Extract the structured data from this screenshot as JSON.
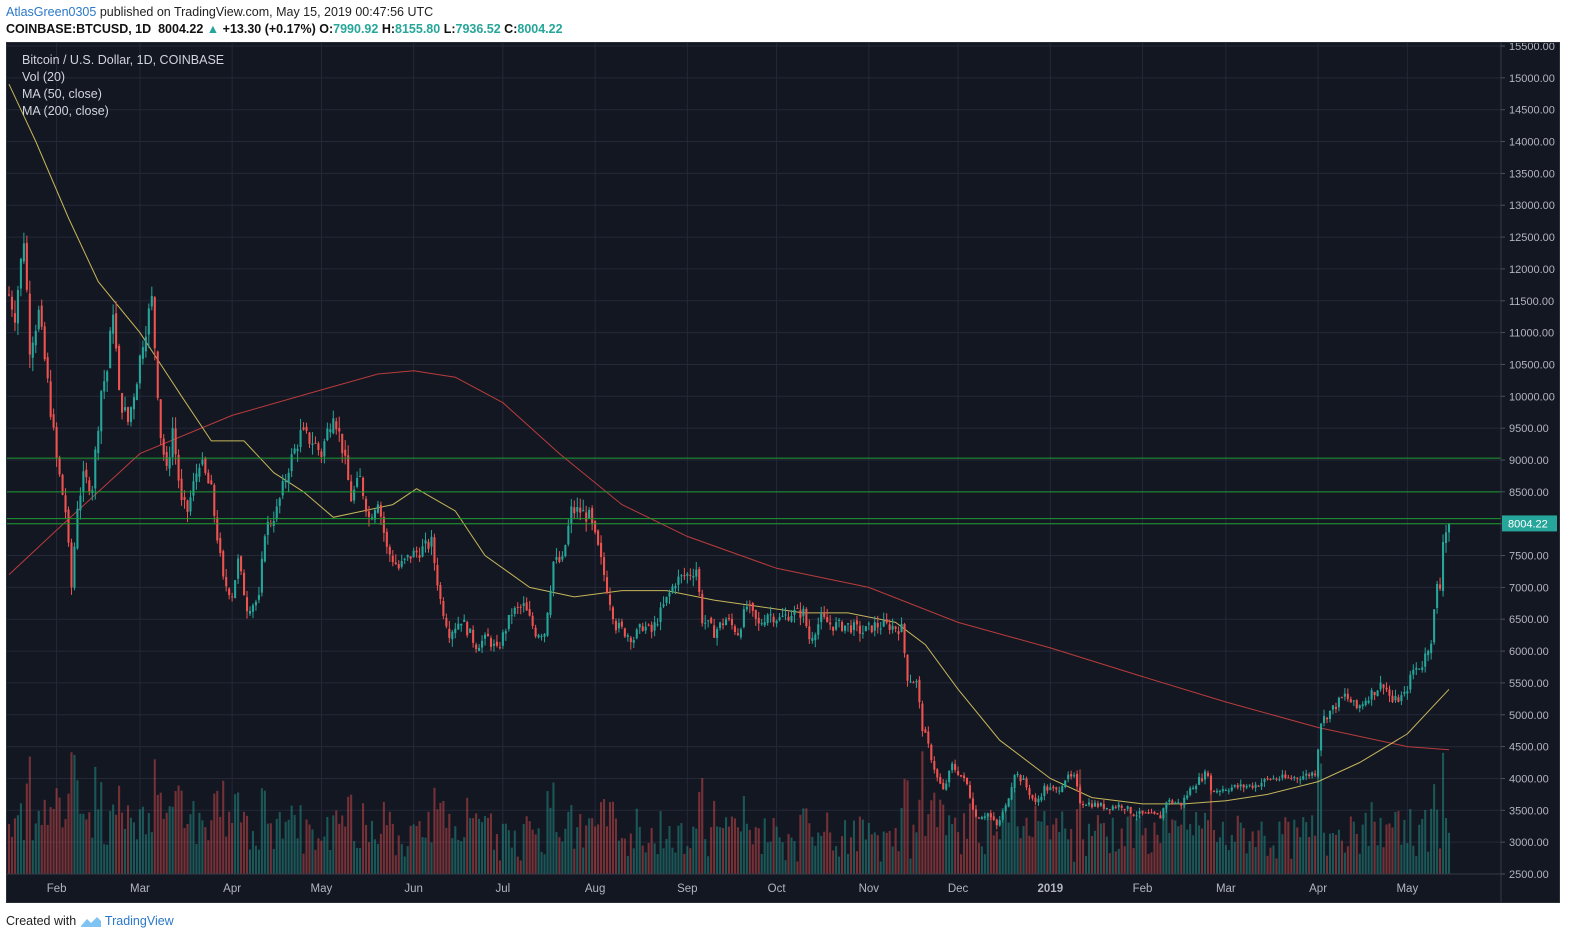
{
  "header": {
    "user": "AtlasGreen0305",
    "published_text": "published on TradingView.com, May 15, 2019 00:47:56 UTC",
    "symbol": "COINBASE:BTCUSD, 1D",
    "last": "8004.22",
    "change_arrow": "▲",
    "change": "+13.30 (+0.17%)",
    "o_label": "O:",
    "o_value": "7990.92",
    "h_label": "H:",
    "h_value": "8155.80",
    "l_label": "L:",
    "l_value": "7936.52",
    "c_label": "C:",
    "c_value": "8004.22"
  },
  "legend": {
    "title": "Bitcoin / U.S. Dollar, 1D, COINBASE",
    "vol": "Vol (20)",
    "ma50": "MA (50, close)",
    "ma200": "MA (200, close)"
  },
  "footer": {
    "created_with": "Created with",
    "brand": "TradingView",
    "logo_icon": "tradingview-logo-icon"
  },
  "colors": {
    "background": "#131722",
    "grid": "#242838",
    "up": "#26a69a",
    "down": "#ef5350",
    "ma50": "#c6b65a",
    "ma200": "#b93c3c",
    "hline": "#1e9b32",
    "axis_text": "#b2b5be"
  },
  "chart_data": {
    "type": "candlestick",
    "title": "Bitcoin / U.S. Dollar, 1D, COINBASE",
    "x_range": [
      "2018-01-16",
      "2019-05-15"
    ],
    "ylim": [
      2500,
      15500
    ],
    "y_ticks": [
      2500,
      3000,
      3500,
      4000,
      4500,
      5000,
      5500,
      6000,
      6500,
      7000,
      7500,
      8000,
      8500,
      9000,
      9500,
      10000,
      10500,
      11000,
      11500,
      12000,
      12500,
      13000,
      13500,
      14000,
      14500,
      15000,
      15500
    ],
    "y_tick_labels": [
      "2500.00",
      "3000.00",
      "3500.00",
      "4000.00",
      "4500.00",
      "5000.00",
      "5500.00",
      "6000.00",
      "6500.00",
      "7000.00",
      "7500.00",
      "8000.00",
      "8500.00",
      "9000.00",
      "9500.00",
      "10000.00",
      "10500.00",
      "11000.00",
      "11500.00",
      "12000.00",
      "12500.00",
      "13000.00",
      "13500.00",
      "14000.00",
      "14500.00",
      "15000.00",
      "15500.00"
    ],
    "x_ticks": [
      {
        "date": "2018-02-01",
        "label": "Feb"
      },
      {
        "date": "2018-03-01",
        "label": "Mar"
      },
      {
        "date": "2018-04-01",
        "label": "Apr"
      },
      {
        "date": "2018-05-01",
        "label": "May"
      },
      {
        "date": "2018-06-01",
        "label": "Jun"
      },
      {
        "date": "2018-07-01",
        "label": "Jul"
      },
      {
        "date": "2018-08-01",
        "label": "Aug"
      },
      {
        "date": "2018-09-01",
        "label": "Sep"
      },
      {
        "date": "2018-10-01",
        "label": "Oct"
      },
      {
        "date": "2018-11-01",
        "label": "Nov"
      },
      {
        "date": "2018-12-01",
        "label": "Dec"
      },
      {
        "date": "2019-01-01",
        "label": "2019"
      },
      {
        "date": "2019-02-01",
        "label": "Feb"
      },
      {
        "date": "2019-03-01",
        "label": "Mar"
      },
      {
        "date": "2019-04-01",
        "label": "Apr"
      },
      {
        "date": "2019-05-01",
        "label": "May"
      }
    ],
    "horizontal_levels": [
      8000,
      8080,
      8500,
      9030
    ],
    "last_price": 8004.22,
    "last_price_label": "8004.22",
    "close_path": [
      [
        "2018-01-16",
        11600
      ],
      [
        "2018-01-18",
        11300
      ],
      [
        "2018-01-21",
        12500
      ],
      [
        "2018-01-23",
        10800
      ],
      [
        "2018-01-26",
        11300
      ],
      [
        "2018-01-29",
        10200
      ],
      [
        "2018-02-01",
        9000
      ],
      [
        "2018-02-04",
        8200
      ],
      [
        "2018-02-06",
        7000
      ],
      [
        "2018-02-08",
        8300
      ],
      [
        "2018-02-10",
        8700
      ],
      [
        "2018-02-13",
        8600
      ],
      [
        "2018-02-16",
        10100
      ],
      [
        "2018-02-18",
        10400
      ],
      [
        "2018-02-20",
        11400
      ],
      [
        "2018-02-22",
        10000
      ],
      [
        "2018-02-25",
        9600
      ],
      [
        "2018-02-28",
        10300
      ],
      [
        "2018-03-02",
        10900
      ],
      [
        "2018-03-05",
        11500
      ],
      [
        "2018-03-08",
        9400
      ],
      [
        "2018-03-10",
        8800
      ],
      [
        "2018-03-12",
        9500
      ],
      [
        "2018-03-15",
        8300
      ],
      [
        "2018-03-17",
        8200
      ],
      [
        "2018-03-19",
        8600
      ],
      [
        "2018-03-21",
        9000
      ],
      [
        "2018-03-25",
        8500
      ],
      [
        "2018-03-29",
        7100
      ],
      [
        "2018-04-01",
        6900
      ],
      [
        "2018-04-03",
        7400
      ],
      [
        "2018-04-06",
        6700
      ],
      [
        "2018-04-10",
        6800
      ],
      [
        "2018-04-12",
        7900
      ],
      [
        "2018-04-16",
        8200
      ],
      [
        "2018-04-20",
        8900
      ],
      [
        "2018-04-24",
        9400
      ],
      [
        "2018-04-28",
        9300
      ],
      [
        "2018-05-01",
        9100
      ],
      [
        "2018-05-05",
        9800
      ],
      [
        "2018-05-08",
        9200
      ],
      [
        "2018-05-11",
        8400
      ],
      [
        "2018-05-14",
        8700
      ],
      [
        "2018-05-17",
        8100
      ],
      [
        "2018-05-20",
        8400
      ],
      [
        "2018-05-23",
        7600
      ],
      [
        "2018-05-27",
        7300
      ],
      [
        "2018-05-31",
        7500
      ],
      [
        "2018-06-04",
        7600
      ],
      [
        "2018-06-07",
        7700
      ],
      [
        "2018-06-10",
        6800
      ],
      [
        "2018-06-13",
        6300
      ],
      [
        "2018-06-17",
        6500
      ],
      [
        "2018-06-22",
        6100
      ],
      [
        "2018-06-26",
        6200
      ],
      [
        "2018-06-29",
        6000
      ],
      [
        "2018-07-04",
        6600
      ],
      [
        "2018-07-08",
        6700
      ],
      [
        "2018-07-12",
        6300
      ],
      [
        "2018-07-15",
        6300
      ],
      [
        "2018-07-18",
        7400
      ],
      [
        "2018-07-21",
        7400
      ],
      [
        "2018-07-24",
        8200
      ],
      [
        "2018-07-27",
        8200
      ],
      [
        "2018-07-30",
        8100
      ],
      [
        "2018-08-02",
        7600
      ],
      [
        "2018-08-05",
        7000
      ],
      [
        "2018-08-08",
        6400
      ],
      [
        "2018-08-11",
        6300
      ],
      [
        "2018-08-14",
        6200
      ],
      [
        "2018-08-17",
        6400
      ],
      [
        "2018-08-20",
        6300
      ],
      [
        "2018-08-24",
        6700
      ],
      [
        "2018-08-28",
        7100
      ],
      [
        "2018-09-01",
        7200
      ],
      [
        "2018-09-04",
        7300
      ],
      [
        "2018-09-06",
        6500
      ],
      [
        "2018-09-10",
        6300
      ],
      [
        "2018-09-14",
        6500
      ],
      [
        "2018-09-18",
        6300
      ],
      [
        "2018-09-21",
        6700
      ],
      [
        "2018-09-25",
        6400
      ],
      [
        "2018-09-28",
        6600
      ],
      [
        "2018-10-02",
        6500
      ],
      [
        "2018-10-06",
        6600
      ],
      [
        "2018-10-10",
        6600
      ],
      [
        "2018-10-12",
        6200
      ],
      [
        "2018-10-16",
        6500
      ],
      [
        "2018-10-20",
        6400
      ],
      [
        "2018-10-25",
        6400
      ],
      [
        "2018-10-30",
        6300
      ],
      [
        "2018-11-03",
        6400
      ],
      [
        "2018-11-08",
        6400
      ],
      [
        "2018-11-12",
        6350
      ],
      [
        "2018-11-14",
        5600
      ],
      [
        "2018-11-17",
        5500
      ],
      [
        "2018-11-19",
        4800
      ],
      [
        "2018-11-21",
        4500
      ],
      [
        "2018-11-24",
        4000
      ],
      [
        "2018-11-26",
        3800
      ],
      [
        "2018-11-29",
        4200
      ],
      [
        "2018-12-01",
        4100
      ],
      [
        "2018-12-04",
        3900
      ],
      [
        "2018-12-07",
        3400
      ],
      [
        "2018-12-11",
        3450
      ],
      [
        "2018-12-14",
        3250
      ],
      [
        "2018-12-17",
        3550
      ],
      [
        "2018-12-20",
        4100
      ],
      [
        "2018-12-23",
        3950
      ],
      [
        "2018-12-27",
        3600
      ],
      [
        "2018-12-30",
        3850
      ],
      [
        "2019-01-03",
        3800
      ],
      [
        "2019-01-06",
        4000
      ],
      [
        "2019-01-09",
        4000
      ],
      [
        "2019-01-11",
        3650
      ],
      [
        "2019-01-15",
        3600
      ],
      [
        "2019-01-20",
        3550
      ],
      [
        "2019-01-25",
        3580
      ],
      [
        "2019-01-29",
        3450
      ],
      [
        "2019-02-03",
        3420
      ],
      [
        "2019-02-07",
        3400
      ],
      [
        "2019-02-09",
        3650
      ],
      [
        "2019-02-14",
        3600
      ],
      [
        "2019-02-18",
        3900
      ],
      [
        "2019-02-23",
        4100
      ],
      [
        "2019-02-24",
        3800
      ],
      [
        "2019-03-01",
        3850
      ],
      [
        "2019-03-06",
        3870
      ],
      [
        "2019-03-11",
        3900
      ],
      [
        "2019-03-16",
        4000
      ],
      [
        "2019-03-22",
        4000
      ],
      [
        "2019-03-28",
        4050
      ],
      [
        "2019-03-31",
        4100
      ],
      [
        "2019-04-02",
        4900
      ],
      [
        "2019-04-05",
        5050
      ],
      [
        "2019-04-10",
        5300
      ],
      [
        "2019-04-14",
        5100
      ],
      [
        "2019-04-18",
        5300
      ],
      [
        "2019-04-23",
        5500
      ],
      [
        "2019-04-26",
        5200
      ],
      [
        "2019-04-30",
        5300
      ],
      [
        "2019-05-03",
        5700
      ],
      [
        "2019-05-06",
        5800
      ],
      [
        "2019-05-09",
        6200
      ],
      [
        "2019-05-11",
        7000
      ],
      [
        "2019-05-12",
        7000
      ],
      [
        "2019-05-13",
        7800
      ],
      [
        "2019-05-15",
        8004
      ]
    ],
    "ma50": [
      [
        "2018-01-16",
        14900
      ],
      [
        "2018-01-25",
        14000
      ],
      [
        "2018-02-05",
        12800
      ],
      [
        "2018-02-15",
        11800
      ],
      [
        "2018-03-01",
        11000
      ],
      [
        "2018-03-15",
        10000
      ],
      [
        "2018-03-25",
        9300
      ],
      [
        "2018-04-05",
        9300
      ],
      [
        "2018-04-15",
        8800
      ],
      [
        "2018-04-25",
        8500
      ],
      [
        "2018-05-05",
        8100
      ],
      [
        "2018-05-15",
        8200
      ],
      [
        "2018-05-25",
        8300
      ],
      [
        "2018-06-02",
        8550
      ],
      [
        "2018-06-15",
        8200
      ],
      [
        "2018-06-25",
        7500
      ],
      [
        "2018-07-10",
        7000
      ],
      [
        "2018-07-25",
        6850
      ],
      [
        "2018-08-10",
        6950
      ],
      [
        "2018-08-25",
        6950
      ],
      [
        "2018-09-10",
        6800
      ],
      [
        "2018-09-25",
        6700
      ],
      [
        "2018-10-10",
        6600
      ],
      [
        "2018-10-25",
        6600
      ],
      [
        "2018-11-10",
        6450
      ],
      [
        "2018-11-20",
        6100
      ],
      [
        "2018-12-01",
        5400
      ],
      [
        "2018-12-15",
        4600
      ],
      [
        "2019-01-01",
        4000
      ],
      [
        "2019-01-15",
        3700
      ],
      [
        "2019-02-01",
        3600
      ],
      [
        "2019-02-15",
        3600
      ],
      [
        "2019-03-01",
        3650
      ],
      [
        "2019-03-15",
        3750
      ],
      [
        "2019-04-01",
        3950
      ],
      [
        "2019-04-15",
        4250
      ],
      [
        "2019-05-01",
        4700
      ],
      [
        "2019-05-15",
        5400
      ]
    ],
    "ma200": [
      [
        "2018-01-16",
        7200
      ],
      [
        "2018-02-01",
        7900
      ],
      [
        "2018-03-01",
        9100
      ],
      [
        "2018-04-01",
        9700
      ],
      [
        "2018-05-01",
        10100
      ],
      [
        "2018-05-20",
        10350
      ],
      [
        "2018-06-01",
        10400
      ],
      [
        "2018-06-15",
        10300
      ],
      [
        "2018-07-01",
        9900
      ],
      [
        "2018-07-20",
        9100
      ],
      [
        "2018-08-10",
        8300
      ],
      [
        "2018-09-01",
        7800
      ],
      [
        "2018-10-01",
        7300
      ],
      [
        "2018-11-01",
        7000
      ],
      [
        "2018-12-01",
        6450
      ],
      [
        "2019-01-01",
        6050
      ],
      [
        "2019-02-01",
        5600
      ],
      [
        "2019-03-01",
        5200
      ],
      [
        "2019-04-01",
        4800
      ],
      [
        "2019-05-01",
        4500
      ],
      [
        "2019-05-15",
        4450
      ]
    ],
    "volume_panel_baseline": 2500
  }
}
